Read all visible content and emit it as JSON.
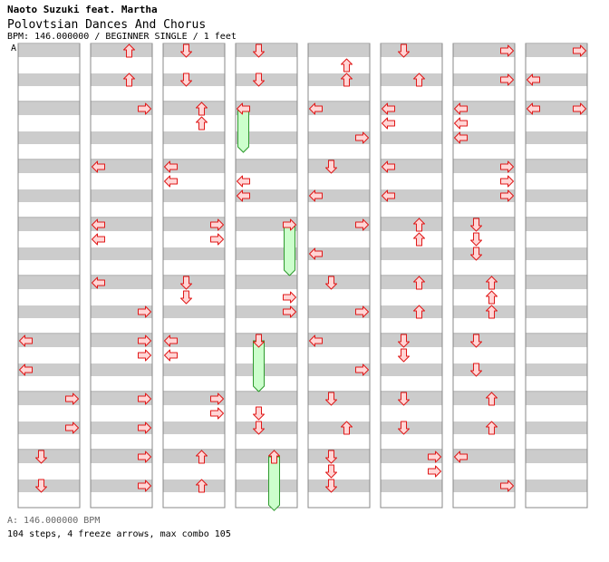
{
  "header": {
    "artist": "Naoto Suzuki feat. Martha",
    "title": "Polovtsian Dances And Chorus",
    "info": "BPM: 146.000000 / BEGINNER SINGLE / 1 feet",
    "bpm_marker": "A"
  },
  "footer": {
    "bpm_legend": "A: 146.000000 BPM",
    "stats": "104 steps, 4 freeze arrows, max combo 105"
  },
  "colors": {
    "stripe": "#cccccc",
    "arrow_fill": "#ffd6d6",
    "arrow_stroke": "#e01818",
    "freeze_fill": "#ccffcc",
    "freeze_stroke": "#2e9a2e",
    "border": "#888888"
  },
  "chart_data": {
    "type": "step-chart",
    "measures_per_column": 8,
    "beats_per_measure": 4,
    "columns": [
      {
        "notes": [
          {
            "m": 5,
            "b": 0,
            "dir": "L"
          },
          {
            "m": 5,
            "b": 2,
            "dir": "L"
          },
          {
            "m": 6,
            "b": 0,
            "dir": "R"
          },
          {
            "m": 6,
            "b": 2,
            "dir": "R"
          },
          {
            "m": 7,
            "b": 0,
            "dir": "D"
          },
          {
            "m": 7,
            "b": 2,
            "dir": "D"
          }
        ],
        "freezes": []
      },
      {
        "notes": [
          {
            "m": 0,
            "b": 0,
            "dir": "U"
          },
          {
            "m": 0,
            "b": 2,
            "dir": "U"
          },
          {
            "m": 1,
            "b": 0,
            "dir": "R"
          },
          {
            "m": 2,
            "b": 0,
            "dir": "L"
          },
          {
            "m": 3,
            "b": 0,
            "dir": "L"
          },
          {
            "m": 3,
            "b": 1,
            "dir": "L"
          },
          {
            "m": 4,
            "b": 0,
            "dir": "L"
          },
          {
            "m": 4,
            "b": 2,
            "dir": "R"
          },
          {
            "m": 5,
            "b": 0,
            "dir": "R"
          },
          {
            "m": 5,
            "b": 1,
            "dir": "R"
          },
          {
            "m": 6,
            "b": 0,
            "dir": "R"
          },
          {
            "m": 6,
            "b": 2,
            "dir": "R"
          },
          {
            "m": 7,
            "b": 0,
            "dir": "R"
          },
          {
            "m": 7,
            "b": 2,
            "dir": "R"
          }
        ],
        "freezes": []
      },
      {
        "notes": [
          {
            "m": 0,
            "b": 0,
            "dir": "D"
          },
          {
            "m": 0,
            "b": 2,
            "dir": "D"
          },
          {
            "m": 1,
            "b": 0,
            "dir": "U"
          },
          {
            "m": 1,
            "b": 1,
            "dir": "U"
          },
          {
            "m": 2,
            "b": 0,
            "dir": "L"
          },
          {
            "m": 2,
            "b": 1,
            "dir": "L"
          },
          {
            "m": 3,
            "b": 0,
            "dir": "R"
          },
          {
            "m": 3,
            "b": 1,
            "dir": "R"
          },
          {
            "m": 4,
            "b": 0,
            "dir": "D"
          },
          {
            "m": 4,
            "b": 1,
            "dir": "D"
          },
          {
            "m": 5,
            "b": 0,
            "dir": "L"
          },
          {
            "m": 5,
            "b": 1,
            "dir": "L"
          },
          {
            "m": 6,
            "b": 0,
            "dir": "R"
          },
          {
            "m": 6,
            "b": 1,
            "dir": "R"
          },
          {
            "m": 7,
            "b": 0,
            "dir": "U"
          },
          {
            "m": 7,
            "b": 2,
            "dir": "U"
          }
        ],
        "freezes": []
      },
      {
        "notes": [
          {
            "m": 0,
            "b": 0,
            "dir": "D"
          },
          {
            "m": 0,
            "b": 2,
            "dir": "D"
          },
          {
            "m": 1,
            "b": 0,
            "dir": "L"
          },
          {
            "m": 2,
            "b": 1,
            "dir": "L"
          },
          {
            "m": 2,
            "b": 2,
            "dir": "L"
          },
          {
            "m": 3,
            "b": 0,
            "dir": "R"
          },
          {
            "m": 4,
            "b": 1,
            "dir": "R"
          },
          {
            "m": 4,
            "b": 2,
            "dir": "R"
          },
          {
            "m": 5,
            "b": 0,
            "dir": "D"
          },
          {
            "m": 6,
            "b": 1,
            "dir": "D"
          },
          {
            "m": 6,
            "b": 2,
            "dir": "D"
          },
          {
            "m": 7,
            "b": 0,
            "dir": "U"
          }
        ],
        "freezes": [
          {
            "m": 1,
            "b": 0,
            "beats": 3,
            "dir": "L"
          },
          {
            "m": 3,
            "b": 0,
            "beats": 3.5,
            "dir": "R"
          },
          {
            "m": 5,
            "b": 0,
            "beats": 3.5,
            "dir": "D"
          },
          {
            "m": 7,
            "b": 0,
            "beats": 3.7,
            "dir": "U"
          }
        ]
      },
      {
        "notes": [
          {
            "m": 0,
            "b": 1,
            "dir": "U"
          },
          {
            "m": 0,
            "b": 2,
            "dir": "U"
          },
          {
            "m": 1,
            "b": 0,
            "dir": "L"
          },
          {
            "m": 1,
            "b": 2,
            "dir": "R"
          },
          {
            "m": 2,
            "b": 0,
            "dir": "D"
          },
          {
            "m": 2,
            "b": 2,
            "dir": "L"
          },
          {
            "m": 3,
            "b": 0,
            "dir": "R"
          },
          {
            "m": 3,
            "b": 2,
            "dir": "L"
          },
          {
            "m": 4,
            "b": 0,
            "dir": "D"
          },
          {
            "m": 4,
            "b": 2,
            "dir": "R"
          },
          {
            "m": 5,
            "b": 0,
            "dir": "L"
          },
          {
            "m": 5,
            "b": 2,
            "dir": "R"
          },
          {
            "m": 6,
            "b": 0,
            "dir": "D"
          },
          {
            "m": 6,
            "b": 2,
            "dir": "U"
          },
          {
            "m": 7,
            "b": 0,
            "dir": "D"
          },
          {
            "m": 7,
            "b": 1,
            "dir": "D"
          },
          {
            "m": 7,
            "b": 2,
            "dir": "D"
          }
        ],
        "freezes": []
      },
      {
        "notes": [
          {
            "m": 0,
            "b": 0,
            "dir": "D"
          },
          {
            "m": 0,
            "b": 2,
            "dir": "U"
          },
          {
            "m": 1,
            "b": 0,
            "dir": "L"
          },
          {
            "m": 1,
            "b": 1,
            "dir": "L"
          },
          {
            "m": 2,
            "b": 0,
            "dir": "L"
          },
          {
            "m": 2,
            "b": 2,
            "dir": "L"
          },
          {
            "m": 3,
            "b": 0,
            "dir": "U"
          },
          {
            "m": 3,
            "b": 1,
            "dir": "U"
          },
          {
            "m": 4,
            "b": 0,
            "dir": "U"
          },
          {
            "m": 4,
            "b": 2,
            "dir": "U"
          },
          {
            "m": 5,
            "b": 0,
            "dir": "D"
          },
          {
            "m": 5,
            "b": 1,
            "dir": "D"
          },
          {
            "m": 6,
            "b": 0,
            "dir": "D"
          },
          {
            "m": 6,
            "b": 2,
            "dir": "D"
          },
          {
            "m": 7,
            "b": 0,
            "dir": "R"
          },
          {
            "m": 7,
            "b": 1,
            "dir": "R"
          }
        ],
        "freezes": []
      },
      {
        "notes": [
          {
            "m": 0,
            "b": 0,
            "dir": "R"
          },
          {
            "m": 0,
            "b": 2,
            "dir": "R"
          },
          {
            "m": 1,
            "b": 0,
            "dir": "L"
          },
          {
            "m": 1,
            "b": 1,
            "dir": "L"
          },
          {
            "m": 1,
            "b": 2,
            "dir": "L"
          },
          {
            "m": 2,
            "b": 0,
            "dir": "R"
          },
          {
            "m": 2,
            "b": 1,
            "dir": "R"
          },
          {
            "m": 2,
            "b": 2,
            "dir": "R"
          },
          {
            "m": 3,
            "b": 0,
            "dir": "D"
          },
          {
            "m": 3,
            "b": 1,
            "dir": "D"
          },
          {
            "m": 3,
            "b": 2,
            "dir": "D"
          },
          {
            "m": 4,
            "b": 0,
            "dir": "U"
          },
          {
            "m": 4,
            "b": 1,
            "dir": "U"
          },
          {
            "m": 4,
            "b": 2,
            "dir": "U"
          },
          {
            "m": 5,
            "b": 0,
            "dir": "D"
          },
          {
            "m": 5,
            "b": 2,
            "dir": "D"
          },
          {
            "m": 6,
            "b": 0,
            "dir": "U"
          },
          {
            "m": 6,
            "b": 2,
            "dir": "U"
          },
          {
            "m": 7,
            "b": 0,
            "dir": "L"
          },
          {
            "m": 7,
            "b": 2,
            "dir": "R"
          }
        ],
        "freezes": []
      },
      {
        "notes": [
          {
            "m": 0,
            "b": 0,
            "dir": "R"
          },
          {
            "m": 0,
            "b": 2,
            "dir": "L"
          },
          {
            "m": 1,
            "b": 0,
            "dir": "L"
          },
          {
            "m": 1,
            "b": 0,
            "dir": "R"
          }
        ],
        "freezes": []
      }
    ]
  }
}
